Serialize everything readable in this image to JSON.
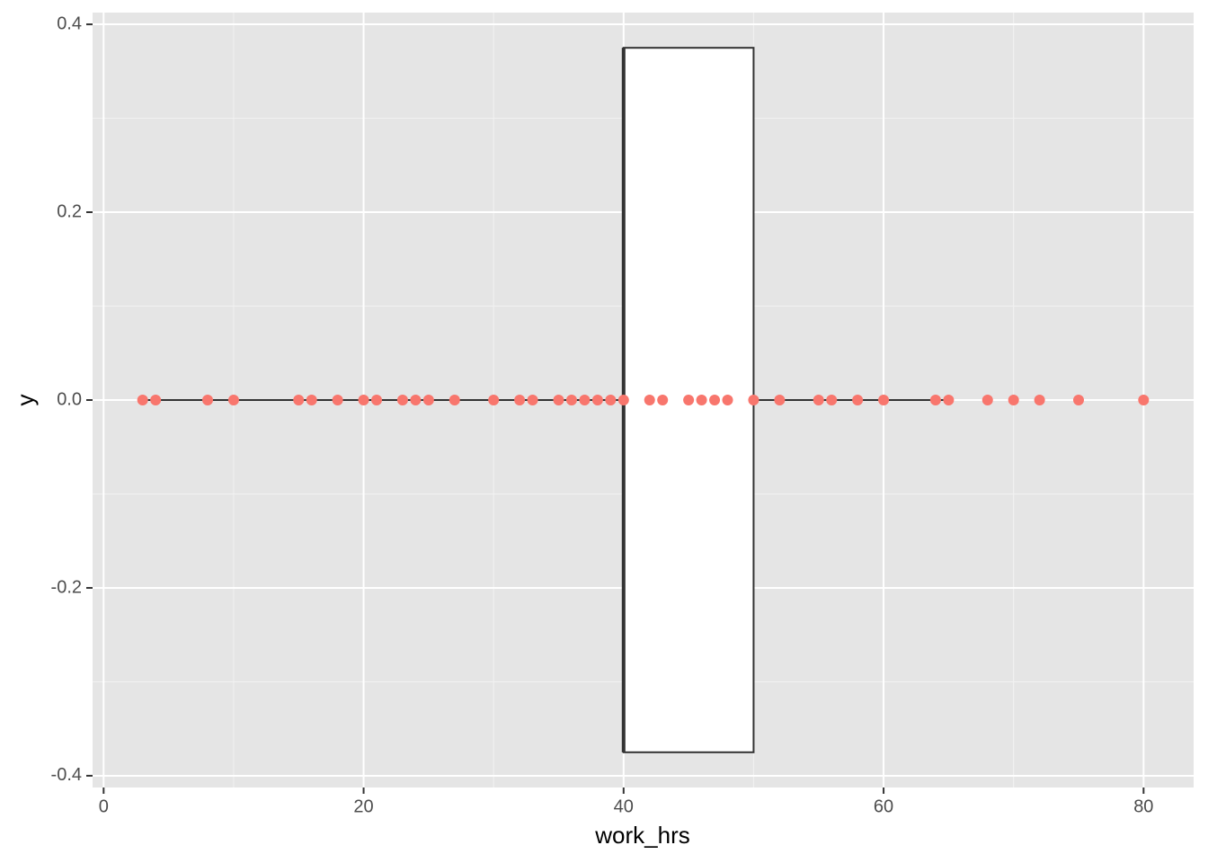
{
  "chart_data": {
    "type": "boxplot",
    "x_label": "work_hrs",
    "y_label": "y",
    "xlim": [
      -0.85,
      83.85
    ],
    "ylim": [
      -0.4125,
      0.4125
    ],
    "xticks": [
      0,
      20,
      40,
      60,
      80
    ],
    "yticks": [
      -0.4,
      -0.2,
      {
        "value": 0,
        "label": "0.0"
      },
      0.2,
      0.4
    ],
    "grid": true,
    "minor_grid": true,
    "box": {
      "lower_whisker": 3,
      "q1": 40,
      "median": 40,
      "q3": 50,
      "upper_whisker": 65,
      "ymin": -0.375,
      "ymax": 0.375,
      "y": 0
    },
    "points": {
      "color": "#F8766D",
      "x": [
        3,
        4,
        8,
        10,
        15,
        16,
        18,
        20,
        21,
        23,
        24,
        25,
        27,
        30,
        32,
        33,
        35,
        36,
        37,
        38,
        39,
        40,
        42,
        43,
        45,
        46,
        47,
        48,
        50,
        52,
        55,
        56,
        58,
        60,
        64,
        65,
        68,
        70,
        72,
        75,
        80
      ],
      "y": [
        0,
        0,
        0,
        0,
        0,
        0,
        0,
        0,
        0,
        0,
        0,
        0,
        0,
        0,
        0,
        0,
        0,
        0,
        0,
        0,
        0,
        0,
        0,
        0,
        0,
        0,
        0,
        0,
        0,
        0,
        0,
        0,
        0,
        0,
        0,
        0,
        0,
        0,
        0,
        0,
        0
      ]
    }
  }
}
